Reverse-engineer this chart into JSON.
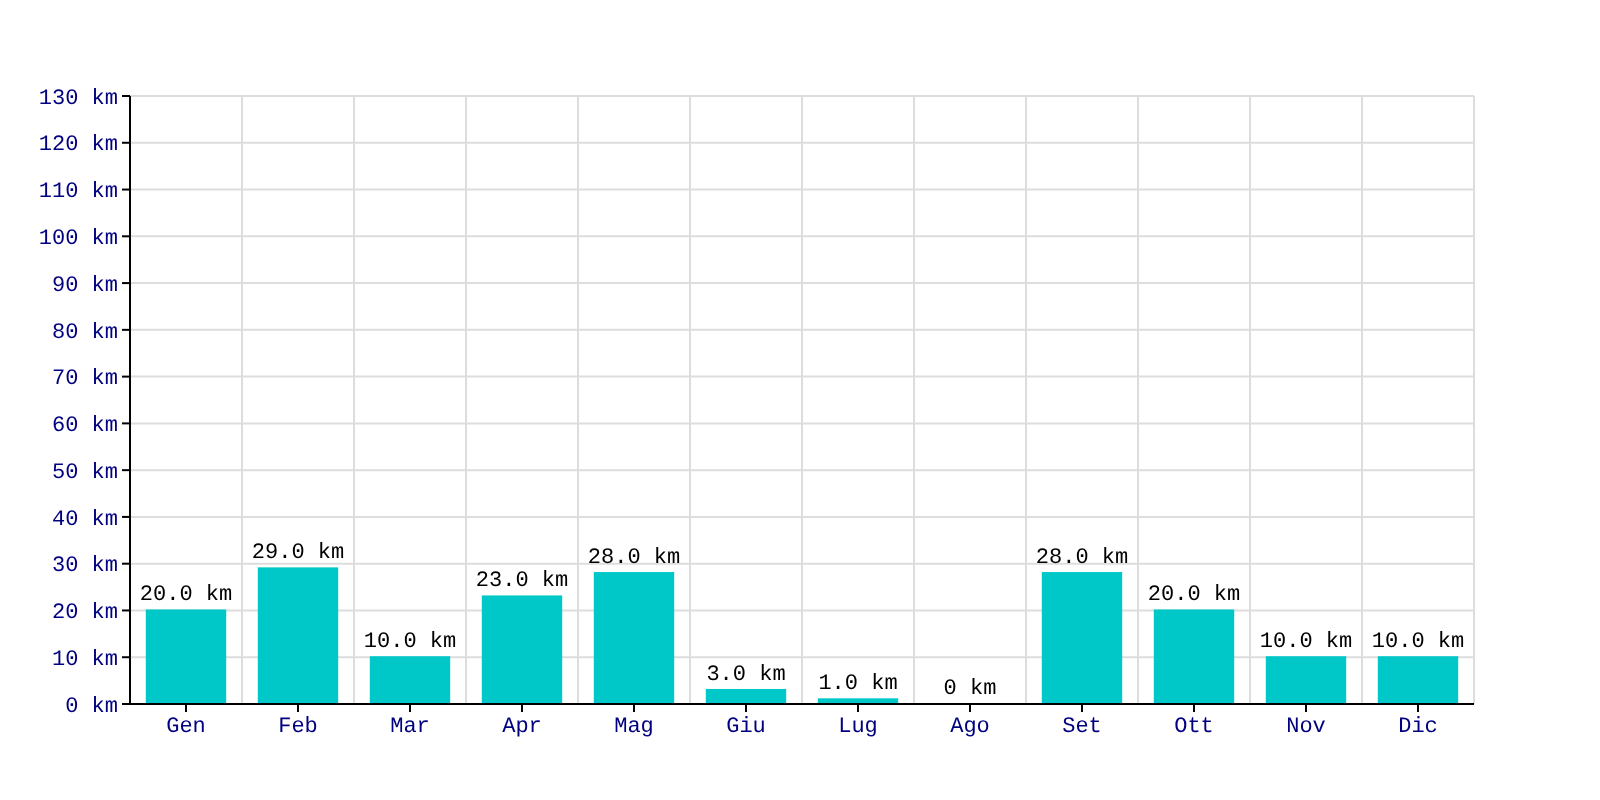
{
  "chart_data": {
    "type": "bar",
    "categories": [
      "Gen",
      "Feb",
      "Mar",
      "Apr",
      "Mag",
      "Giu",
      "Lug",
      "Ago",
      "Set",
      "Ott",
      "Nov",
      "Dic"
    ],
    "values": [
      20,
      29,
      10,
      23,
      28,
      3,
      1,
      0,
      28,
      20,
      10,
      10
    ],
    "value_labels": [
      "20.0 km",
      "29.0 km",
      "10.0 km",
      "23.0 km",
      "28.0 km",
      "3.0 km",
      "1.0 km",
      "0 km",
      "28.0 km",
      "20.0 km",
      "10.0 km",
      "10.0 km"
    ],
    "color": "#00c8c8",
    "ylim": [
      0,
      130
    ],
    "yticks": [
      {
        "value": 0,
        "label": "0 km"
      },
      {
        "value": 10,
        "label": "10 km"
      },
      {
        "value": 20,
        "label": "20 km"
      },
      {
        "value": 30,
        "label": "30 km"
      },
      {
        "value": 40,
        "label": "40 km"
      },
      {
        "value": 50,
        "label": "50 km"
      },
      {
        "value": 60,
        "label": "60 km"
      },
      {
        "value": 70,
        "label": "70 km"
      },
      {
        "value": 80,
        "label": "80 km"
      },
      {
        "value": 90,
        "label": "90 km"
      },
      {
        "value": 100,
        "label": "100 km"
      },
      {
        "value": 110,
        "label": "110 km"
      },
      {
        "value": 120,
        "label": "120 km"
      },
      {
        "value": 130,
        "label": "130 km"
      }
    ],
    "grid": true
  }
}
